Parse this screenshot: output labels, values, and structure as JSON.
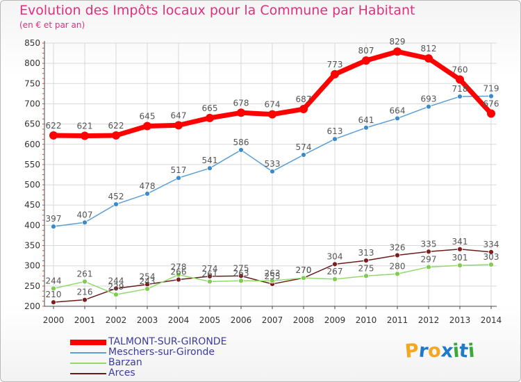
{
  "header": {
    "title": "Evolution des Impôts locaux pour la Commune par Habitant",
    "subtitle": "(en € et par an)"
  },
  "logo": {
    "text": "Proxiti",
    "colors": [
      "#f5a623",
      "#1f7ac9",
      "#f5a623",
      "#1f7ac9",
      "#3aa83a",
      "#1f7ac9",
      "#3aa83a"
    ]
  },
  "chart_data": {
    "type": "line",
    "x": [
      "2000",
      "2001",
      "2002",
      "2003",
      "2004",
      "2005",
      "2006",
      "2007",
      "2008",
      "2009",
      "2010",
      "2011",
      "2012",
      "2013",
      "2014"
    ],
    "ylim": [
      200,
      850
    ],
    "yticks": [
      200,
      250,
      300,
      350,
      400,
      450,
      500,
      550,
      600,
      650,
      700,
      750,
      800,
      850
    ],
    "grid": true,
    "legend_position": "bottom-left",
    "series": [
      {
        "name": "Arces",
        "color": "#6b1a1a",
        "marker": "#7a1e1e",
        "width": 1.5,
        "r": 3.5,
        "values": [
          210,
          216,
          244,
          254,
          266,
          274,
          275,
          255,
          270,
          304,
          313,
          326,
          335,
          341,
          334
        ]
      },
      {
        "name": "Barzan",
        "color": "#92d86a",
        "marker": "#7fcc4f",
        "width": 1.5,
        "r": 3.5,
        "values": [
          244,
          261,
          229,
          243,
          278,
          261,
          263,
          263,
          270,
          267,
          275,
          280,
          297,
          301,
          303
        ]
      },
      {
        "name": "Meschers-sur-Gironde",
        "color": "#5a9fd6",
        "marker": "#3d8ac9",
        "width": 1.5,
        "r": 3.5,
        "values": [
          397,
          407,
          452,
          478,
          517,
          541,
          586,
          533,
          574,
          613,
          641,
          664,
          693,
          718,
          719
        ]
      },
      {
        "name": "TALMONT-SUR-GIRONDE",
        "color": "#ff0000",
        "marker": "#ff0000",
        "width": 7,
        "r": 6,
        "values": [
          622,
          621,
          622,
          645,
          647,
          665,
          678,
          674,
          687,
          773,
          807,
          829,
          812,
          760,
          676
        ]
      }
    ]
  }
}
